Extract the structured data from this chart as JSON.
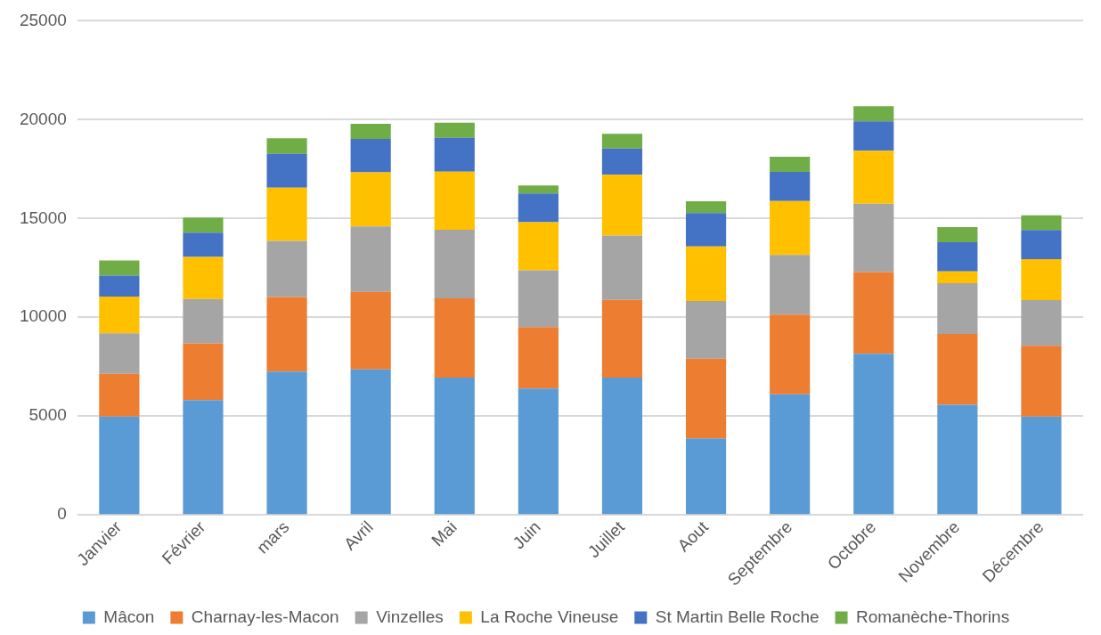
{
  "chart_data": {
    "type": "bar",
    "stacked": true,
    "categories": [
      "Janvier",
      "Février",
      "mars",
      "Avril",
      "Mai",
      "Juin",
      "Juillet",
      "Aout",
      "Septembre",
      "Octobre",
      "Novembre",
      "Décembre"
    ],
    "series": [
      {
        "name": "Mâcon",
        "color": "#5b9bd5",
        "values": [
          4970,
          5810,
          7250,
          7360,
          6950,
          6400,
          6950,
          3870,
          6100,
          8150,
          5570,
          4970
        ]
      },
      {
        "name": "Charnay-les-Macon",
        "color": "#ed7d31",
        "values": [
          2170,
          2870,
          3770,
          3920,
          4010,
          3110,
          3930,
          4030,
          4030,
          4140,
          3590,
          3590
        ]
      },
      {
        "name": "Vinzelles",
        "color": "#a5a5a5",
        "values": [
          2050,
          2240,
          2840,
          3320,
          3470,
          2870,
          3250,
          2920,
          3030,
          3460,
          2560,
          2310
        ]
      },
      {
        "name": "La Roche Vineuse",
        "color": "#ffc000",
        "values": [
          1860,
          2130,
          2700,
          2730,
          2940,
          2430,
          3080,
          2760,
          2720,
          2680,
          600,
          2070
        ]
      },
      {
        "name": "St Martin Belle Roche",
        "color": "#4472c4",
        "values": [
          1060,
          1230,
          1710,
          1690,
          1710,
          1450,
          1330,
          1690,
          1480,
          1480,
          1480,
          1480
        ]
      },
      {
        "name": "Romanèche-Thorins",
        "color": "#70ad47",
        "values": [
          760,
          770,
          790,
          770,
          770,
          410,
          740,
          600,
          760,
          770,
          760,
          740
        ]
      }
    ],
    "ylim": [
      0,
      25000
    ],
    "yticks": [
      0,
      5000,
      10000,
      15000,
      20000,
      25000
    ],
    "grid": "y",
    "legend": "bottom"
  }
}
